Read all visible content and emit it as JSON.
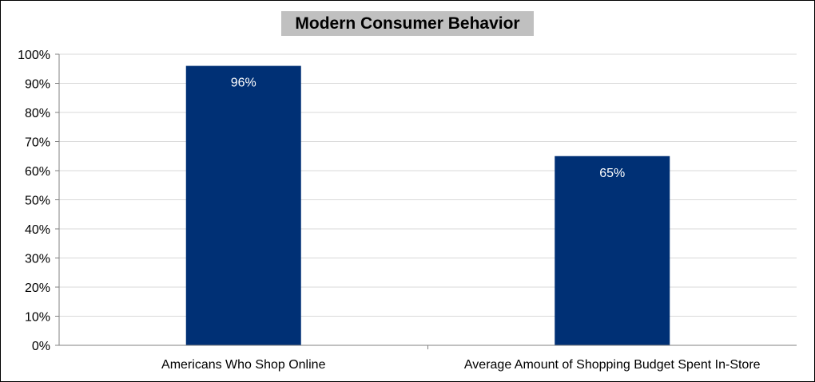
{
  "chart_data": {
    "type": "bar",
    "title": "Modern Consumer Behavior",
    "categories": [
      "Americans Who Shop Online",
      "Average Amount of Shopping Budget Spent In-Store"
    ],
    "values": [
      96,
      65
    ],
    "data_labels": [
      "96%",
      "65%"
    ],
    "y_ticks": [
      "0%",
      "10%",
      "20%",
      "30%",
      "40%",
      "50%",
      "60%",
      "70%",
      "80%",
      "90%",
      "100%"
    ],
    "ylim": [
      0,
      100
    ],
    "grid": true,
    "legend": "none",
    "colors": {
      "bar": "#003075",
      "title_background": "#c0c0c0",
      "gridline": "#d9d9d9",
      "axis": "#808080",
      "frame": "#000000"
    }
  }
}
